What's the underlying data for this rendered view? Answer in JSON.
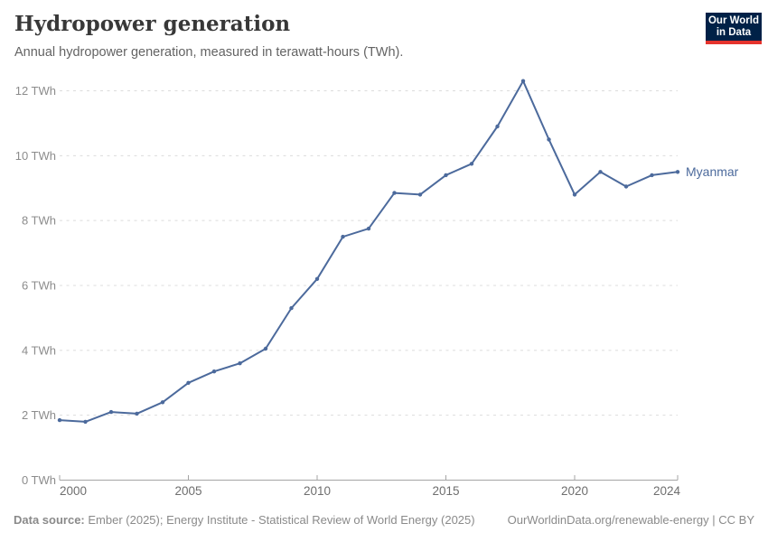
{
  "header": {
    "title": "Hydropower generation",
    "subtitle": "Annual hydropower generation, measured in terawatt-hours (TWh)."
  },
  "logo": {
    "line1": "Our World",
    "line2": "in Data",
    "bg_color": "#002147",
    "accent_color": "#E5332D"
  },
  "chart_data": {
    "type": "line",
    "title": "Hydropower generation",
    "xlabel": "",
    "ylabel": "",
    "xlim": [
      2000,
      2024
    ],
    "ylim": [
      0,
      12
    ],
    "x_ticks": [
      2000,
      2005,
      2010,
      2015,
      2020,
      2024
    ],
    "y_ticks": [
      0,
      2,
      4,
      6,
      8,
      10,
      12
    ],
    "y_tick_suffix": " TWh",
    "grid": "horizontal-dashed",
    "legend_position": "end-of-line",
    "series": [
      {
        "name": "Myanmar",
        "color": "#4C6A9C",
        "x": [
          2000,
          2001,
          2002,
          2003,
          2004,
          2005,
          2006,
          2007,
          2008,
          2009,
          2010,
          2011,
          2012,
          2013,
          2014,
          2015,
          2016,
          2017,
          2018,
          2019,
          2020,
          2021,
          2022,
          2023,
          2024
        ],
        "values": [
          1.85,
          1.8,
          2.1,
          2.05,
          2.4,
          3.0,
          3.35,
          3.6,
          4.05,
          5.3,
          6.2,
          7.5,
          7.75,
          8.85,
          8.8,
          9.4,
          9.75,
          10.9,
          12.3,
          10.5,
          8.8,
          9.5,
          9.05,
          9.4,
          9.5
        ]
      }
    ]
  },
  "style": {
    "gridline_color": "#dcdcdc",
    "axis_color": "#a5a5a5",
    "y_label_color": "#8c8c8c",
    "x_label_color": "#6e6e6e"
  },
  "footer": {
    "source_label": "Data source:",
    "source_text": "Ember (2025); Energy Institute - Statistical Review of World Energy (2025)",
    "link": "OurWorldinData.org/renewable-energy | CC BY"
  }
}
